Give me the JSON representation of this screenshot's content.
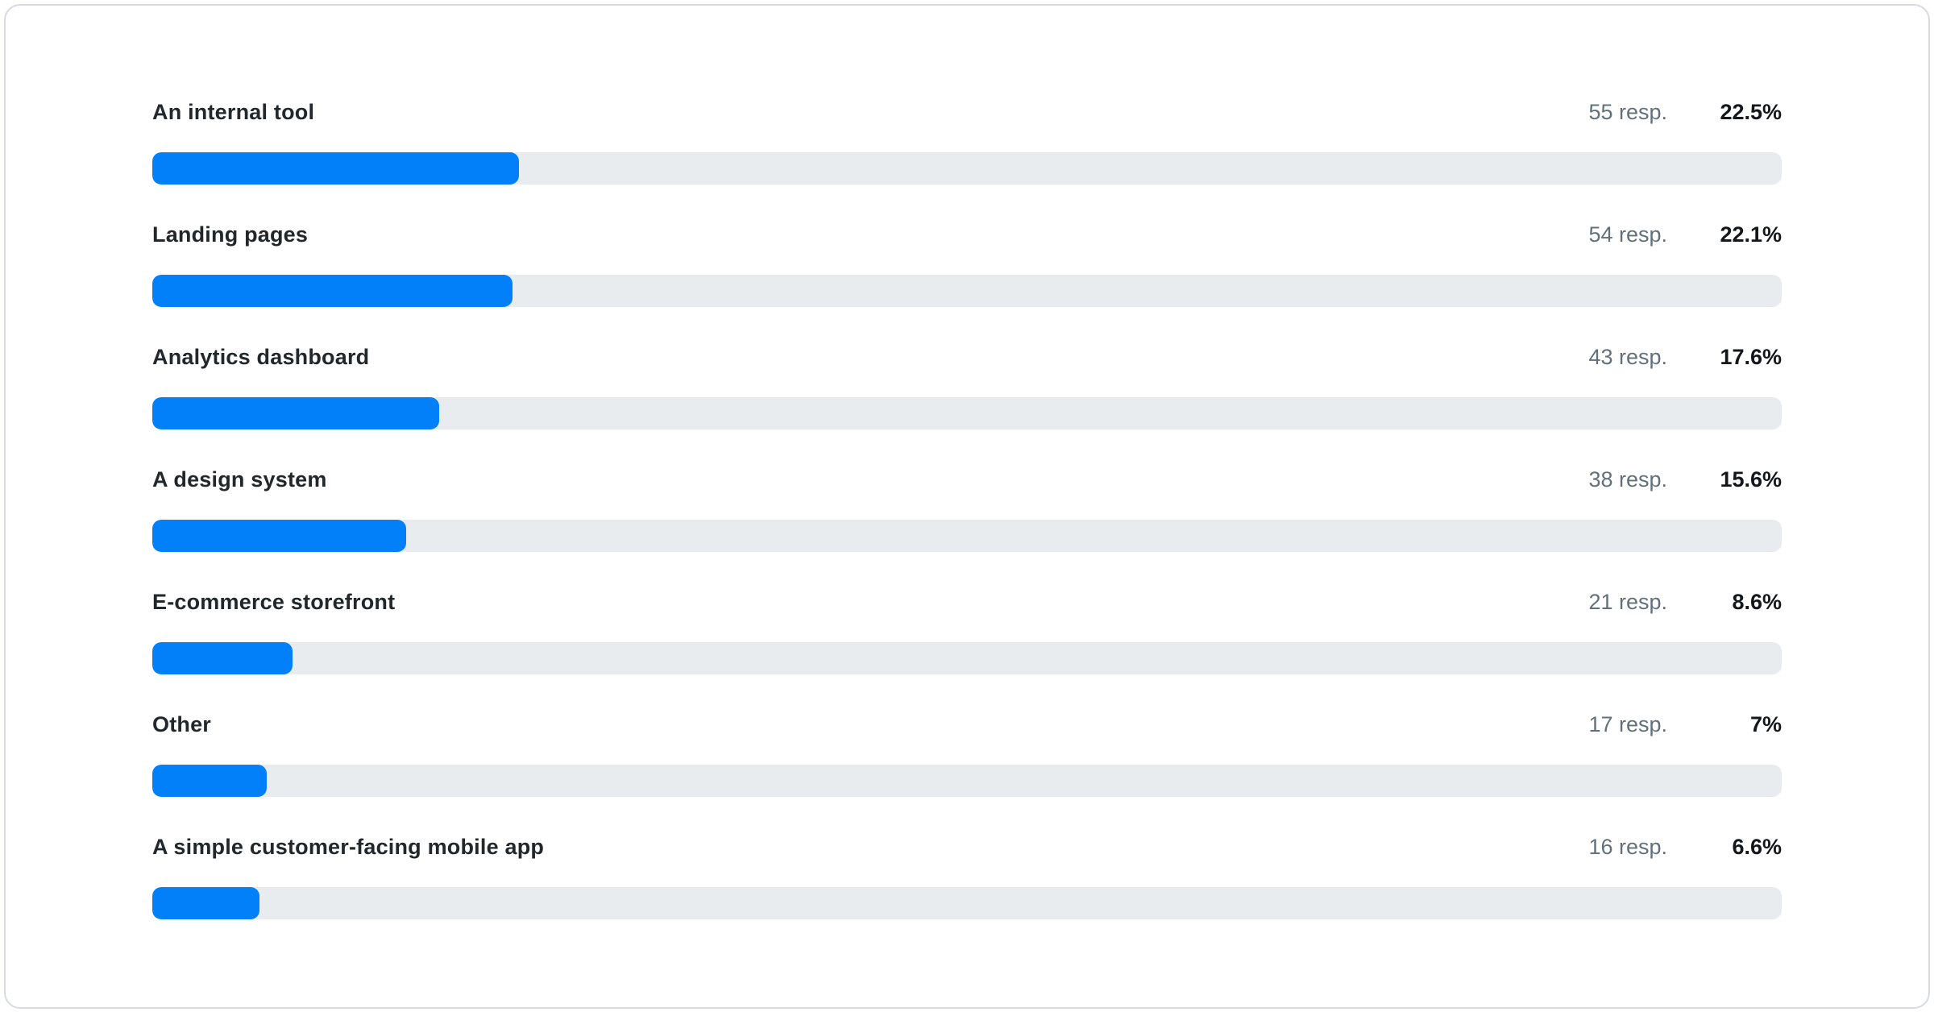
{
  "chart_data": {
    "type": "bar",
    "orientation": "horizontal",
    "title": "",
    "categories": [
      "An internal tool",
      "Landing pages",
      "Analytics dashboard",
      "A design system",
      "E-commerce storefront",
      "Other",
      "A simple customer-facing mobile app"
    ],
    "responses": [
      55,
      54,
      43,
      38,
      21,
      17,
      16
    ],
    "percent_values": [
      22.5,
      22.1,
      17.6,
      15.6,
      8.6,
      7,
      6.6
    ],
    "value_suffix": "resp.",
    "xlim": [
      0,
      100
    ],
    "grid": false,
    "legend": false
  },
  "rows": [
    {
      "label": "An internal tool",
      "responses_label": "55 resp.",
      "percent_label": "22.5%",
      "percent": 22.5
    },
    {
      "label": "Landing pages",
      "responses_label": "54 resp.",
      "percent_label": "22.1%",
      "percent": 22.1
    },
    {
      "label": "Analytics dashboard",
      "responses_label": "43 resp.",
      "percent_label": "17.6%",
      "percent": 17.6
    },
    {
      "label": "A design system",
      "responses_label": "38 resp.",
      "percent_label": "15.6%",
      "percent": 15.6
    },
    {
      "label": "E-commerce storefront",
      "responses_label": "21 resp.",
      "percent_label": "8.6%",
      "percent": 8.6
    },
    {
      "label": "Other",
      "responses_label": "17 resp.",
      "percent_label": "7%",
      "percent": 7
    },
    {
      "label": "A simple customer-facing mobile app",
      "responses_label": "16 resp.",
      "percent_label": "6.6%",
      "percent": 6.6
    }
  ],
  "colors": {
    "bar": "#0280fa",
    "track": "#e9ecef",
    "label": "#21272a",
    "muted": "#62707a",
    "percent": "#14181c",
    "card_border": "#d7dbe0"
  }
}
